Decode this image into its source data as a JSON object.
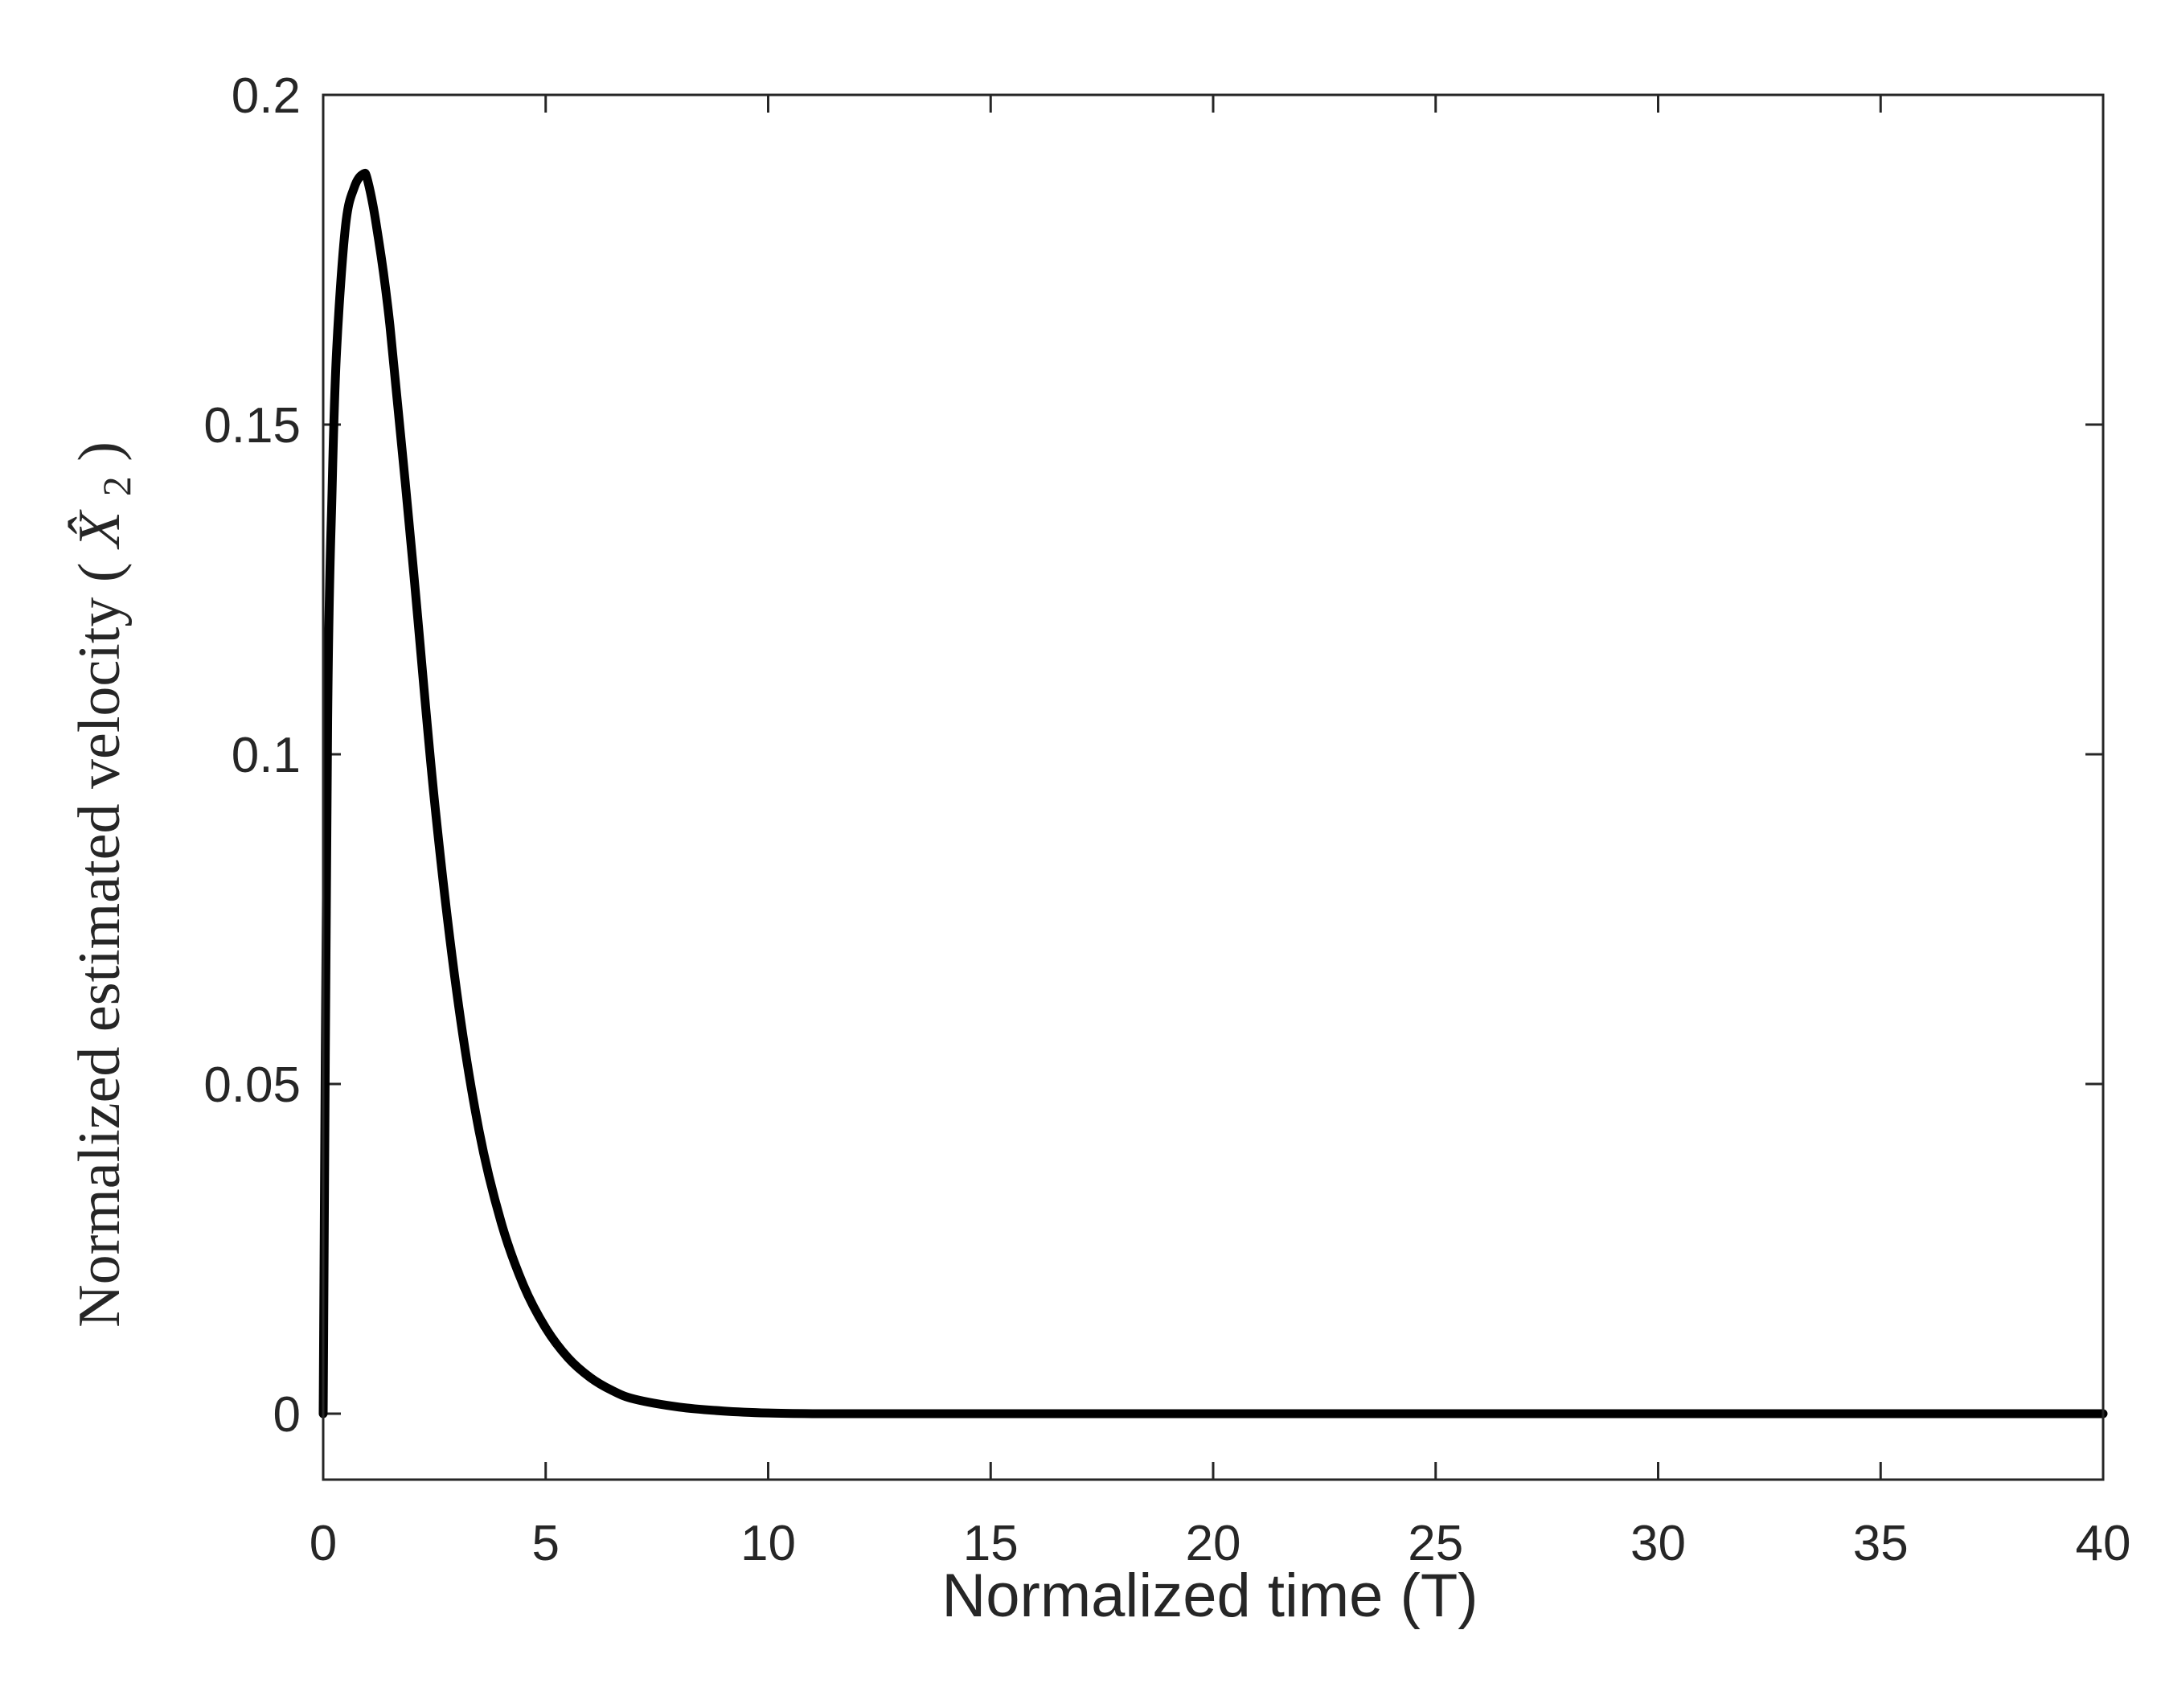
{
  "chart_data": {
    "type": "line",
    "xlabel": "Normalized time (T)",
    "ylabel": "Normalized estimated velocity",
    "ylabel_symbol": "X̂",
    "ylabel_subscript": "2",
    "xlim": [
      0,
      40
    ],
    "ylim": [
      -0.01,
      0.2
    ],
    "x_ticks": [
      "0",
      "5",
      "10",
      "15",
      "20",
      "25",
      "30",
      "35",
      "40"
    ],
    "y_ticks": [
      "0",
      "0.05",
      "0.1",
      "0.15",
      "0.2"
    ],
    "grid": false,
    "line_color": "#000000",
    "series": [
      {
        "x": [
          0,
          0.1,
          0.2,
          0.3,
          0.5,
          0.7,
          0.9,
          1.0,
          1.2,
          1.5,
          2.0,
          2.5,
          3.0,
          3.5,
          4.0,
          4.5,
          5.0,
          5.5,
          6.0,
          6.5,
          7.0,
          8.0,
          9.0,
          10.0,
          11.0,
          12.0,
          15.0,
          20.0,
          25.0,
          30.0,
          35.0,
          40.0
        ],
        "y": [
          0,
          0.105,
          0.14,
          0.161,
          0.18,
          0.186,
          0.188,
          0.187,
          0.18,
          0.165,
          0.13,
          0.093,
          0.064,
          0.043,
          0.029,
          0.0195,
          0.013,
          0.0085,
          0.0055,
          0.0035,
          0.0022,
          0.001,
          0.0004,
          0.0001,
          0,
          0,
          0,
          0,
          0,
          0,
          0,
          0
        ]
      }
    ]
  }
}
